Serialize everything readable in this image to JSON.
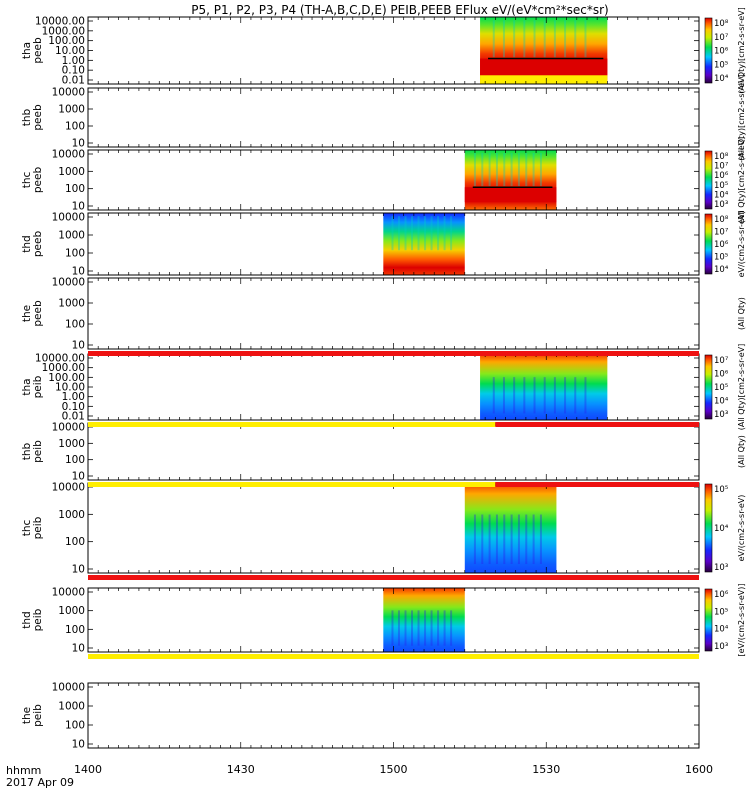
{
  "title": "P5, P1, P2, P3, P4 (TH-A,B,C,D,E) PEIB,PEEB EFlux eV/(eV*cm²*sec*sr)",
  "footer": {
    "time_label": "hhmm",
    "date_label": "2017 Apr 09"
  },
  "colors": {
    "red": "#ee1111",
    "yellow": "#ffee00",
    "black": "#000000"
  },
  "chart_data": {
    "type": "heatmap",
    "x_axis": {
      "range": [
        "14:00",
        "16:00"
      ],
      "tick_labels": [
        "1400",
        "1430",
        "1500",
        "1530",
        "1600"
      ],
      "tick_values_minutes": [
        0,
        30,
        60,
        90,
        120
      ]
    },
    "panels": [
      {
        "probe": "tha",
        "instrument": "peeb",
        "ylabel": "tha peeb",
        "y_ticks": [
          "10000.00",
          "1000.00",
          "100.00",
          "10.00",
          "1.00",
          "0.10",
          "0.01"
        ],
        "data_start": "15:17",
        "data_end": "15:42",
        "colorbar": {
          "ticks": [
            "10⁸",
            "10⁷",
            "10⁶",
            "10⁵",
            "10⁴"
          ],
          "label": "(All Qty)[cm2-s-sr-eV]"
        }
      },
      {
        "probe": "thb",
        "instrument": "peeb",
        "ylabel": "thb peeb",
        "y_ticks": [
          "10000",
          "1000",
          "100",
          "10"
        ],
        "data_start": null,
        "data_end": null,
        "colorbar": {
          "ticks": [],
          "label": "(All Qty)[cm2-s-sr-eV]"
        }
      },
      {
        "probe": "thc",
        "instrument": "peeb",
        "ylabel": "thc peeb",
        "y_ticks": [
          "10000",
          "1000",
          "100",
          "10"
        ],
        "data_start": "15:14",
        "data_end": "15:32",
        "colorbar": {
          "ticks": [
            "10⁸",
            "10⁷",
            "10⁶",
            "10⁵",
            "10⁴",
            "10³"
          ],
          "label": "(All Qty)[cm2-s-sr-eV]"
        }
      },
      {
        "probe": "thd",
        "instrument": "peeb",
        "ylabel": "thd peeb",
        "y_ticks": [
          "10000",
          "1000",
          "100",
          "10"
        ],
        "data_start": "14:58",
        "data_end": "15:14",
        "colorbar": {
          "ticks": [
            "10⁸",
            "10⁷",
            "10⁶",
            "10⁵",
            "10⁴"
          ],
          "label": "eV/(cm2-s-sr-eV)"
        }
      },
      {
        "probe": "the",
        "instrument": "peeb",
        "ylabel": "the peeb",
        "y_ticks": [
          "10000",
          "1000",
          "100",
          "10"
        ],
        "data_start": null,
        "data_end": null,
        "colorbar": {
          "ticks": [],
          "label": "(All Qty)"
        }
      },
      {
        "probe": "tha",
        "instrument": "peib",
        "ylabel": "tha peib",
        "y_ticks": [
          "10000.00",
          "1000.00",
          "100.00",
          "10.00",
          "1.00",
          "0.10",
          "0.01"
        ],
        "data_start": "15:17",
        "data_end": "15:42",
        "colorbar": {
          "ticks": [
            "10⁷",
            "10⁶",
            "10⁵",
            "10⁴",
            "10³"
          ],
          "label": "(All Qty)[cm2-s-sr-eV]"
        }
      },
      {
        "probe": "thb",
        "instrument": "peib",
        "ylabel": "thb peib",
        "y_ticks": [
          "10000",
          "1000",
          "100",
          "10"
        ],
        "data_start": null,
        "data_end": null,
        "colorbar": {
          "ticks": [],
          "label": "(All Qty)"
        }
      },
      {
        "probe": "thc",
        "instrument": "peib",
        "ylabel": "thc peib",
        "y_ticks": [
          "10000",
          "1000",
          "100",
          "10"
        ],
        "data_start": "15:14",
        "data_end": "15:32",
        "colorbar": {
          "ticks": [
            "10⁵",
            "10⁴",
            "10³"
          ],
          "label": "eV/(cm2-s-sr-eV)"
        }
      },
      {
        "probe": "thd",
        "instrument": "peib",
        "ylabel": "thd peib",
        "y_ticks": [
          "10000",
          "1000",
          "100",
          "10"
        ],
        "data_start": "14:58",
        "data_end": "15:14",
        "colorbar": {
          "ticks": [
            "10⁶",
            "10⁵",
            "10⁴",
            "10³"
          ],
          "label": "[eV/(cm2-s-sr-eV)]"
        }
      },
      {
        "probe": "the",
        "instrument": "peib",
        "ylabel": "the peib",
        "y_ticks": [
          "10000",
          "1000",
          "100",
          "10"
        ],
        "data_start": null,
        "data_end": null,
        "colorbar": {
          "ticks": [],
          "label": ""
        }
      }
    ],
    "status_bars": [
      {
        "after_panel": 4,
        "segments": [
          {
            "from": "14:00",
            "to": "16:00",
            "color": "red"
          }
        ]
      },
      {
        "after_panel": 5,
        "segments": [
          {
            "from": "14:00",
            "to": "15:20",
            "color": "yellow"
          },
          {
            "from": "15:20",
            "to": "16:00",
            "color": "red"
          }
        ]
      },
      {
        "after_panel": 6,
        "segments": [
          {
            "from": "14:00",
            "to": "15:20",
            "color": "yellow"
          },
          {
            "from": "15:20",
            "to": "16:00",
            "color": "red"
          }
        ]
      },
      {
        "after_panel": 7,
        "segments": [
          {
            "from": "14:00",
            "to": "16:00",
            "color": "red"
          }
        ]
      },
      {
        "after_panel": 8,
        "segments": [
          {
            "from": "14:00",
            "to": "16:00",
            "color": "yellow"
          }
        ]
      }
    ]
  }
}
